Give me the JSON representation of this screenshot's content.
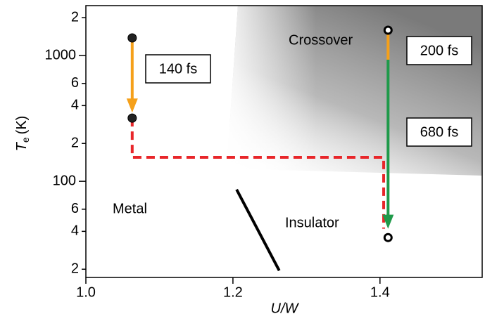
{
  "chart_data": {
    "type": "phase_diagram",
    "x_label": "U/W",
    "y_label": {
      "symbol": "T",
      "subscript": "e",
      "unit": "(K)"
    },
    "xlim": [
      1.0,
      1.539
    ],
    "ylim": [
      17.2,
      2494
    ],
    "log_y": true,
    "xticks": [
      {
        "value": 1.0,
        "label": "1.0"
      },
      {
        "value": 1.2,
        "label": "1.2"
      },
      {
        "value": 1.4,
        "label": "1.4"
      }
    ],
    "yticks": [
      {
        "value": 20,
        "label": "2"
      },
      {
        "value": 40,
        "label": "4"
      },
      {
        "value": 60,
        "label": "6"
      },
      100,
      {
        "value": 200,
        "label": "2"
      },
      {
        "value": 400,
        "label": "4"
      },
      {
        "value": 600,
        "label": "6"
      },
      1000,
      {
        "value": 2000,
        "label": "2"
      }
    ],
    "regions": [
      "Metal",
      "Insulator",
      "Crossover"
    ],
    "points": [
      {
        "x": 1.063,
        "y": 1380,
        "style": "filled"
      },
      {
        "x": 1.063,
        "y": 318,
        "style": "filled"
      },
      {
        "x": 1.411,
        "y": 1590,
        "style": "open"
      },
      {
        "x": 1.411,
        "y": 35.7,
        "style": "open"
      }
    ],
    "arrows": [
      {
        "x": 1.063,
        "y_from": 1380,
        "y_to": 352,
        "color": "#f5a01a",
        "head": true,
        "label": "140 fs"
      },
      {
        "x": 1.411,
        "y_from": 1590,
        "y_to": 926,
        "color": "#f5a01a",
        "head": false,
        "label": "200 fs"
      },
      {
        "x": 1.411,
        "y_from": 926,
        "y_to": 42,
        "color": "#1f9a4a",
        "head": true,
        "label": "680 fs"
      }
    ],
    "dashed_path": {
      "x": [
        1.063,
        1.063,
        1.405,
        1.405
      ],
      "y": [
        318,
        155,
        155,
        42
      ],
      "color": "#e8262a"
    },
    "boundary_line": {
      "x": [
        1.205,
        1.263
      ],
      "y": [
        86,
        19.5
      ],
      "color": "#000000"
    }
  }
}
